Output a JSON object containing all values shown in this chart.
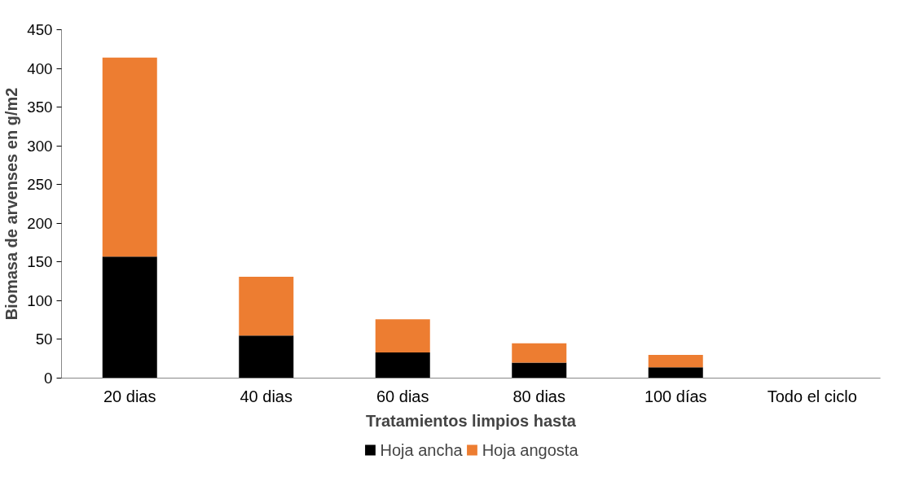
{
  "chart_data": {
    "type": "bar",
    "stacked": true,
    "xlabel": "Tratamientos limpios hasta",
    "ylabel": "Biomasa de arvenses en g/m2",
    "categories": [
      "20 dias",
      "40 dias",
      "60 dias",
      "80 dias",
      "100 días",
      "Todo el ciclo"
    ],
    "series": [
      {
        "name": "Hoja ancha",
        "color": "#000000",
        "values": [
          157,
          55,
          33,
          20,
          14,
          0
        ]
      },
      {
        "name": "Hoja angosta",
        "color": "#ed7d31",
        "values": [
          257,
          76,
          43,
          25,
          16,
          0
        ]
      }
    ],
    "ylim": [
      0,
      450
    ],
    "yticks": [
      0,
      50,
      100,
      150,
      200,
      250,
      300,
      350,
      400,
      450
    ],
    "grid": false,
    "legend": "bottom"
  }
}
